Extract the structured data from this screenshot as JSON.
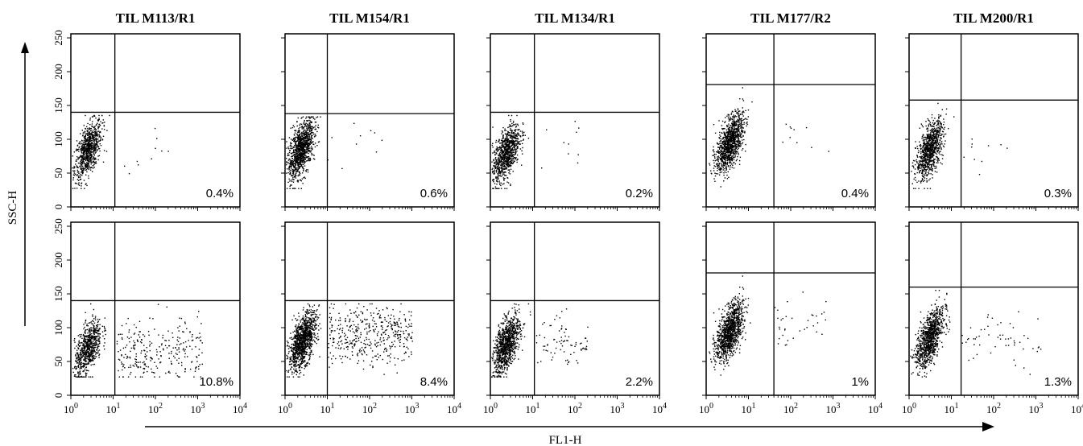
{
  "figure": {
    "y_axis_label": "SSC-H",
    "x_axis_label": "FL1-H"
  },
  "chart_data": [
    {
      "type": "scatter",
      "title": "TIL M113/R1",
      "row": "top",
      "percentage": "0.4%",
      "xscale": "log",
      "xlim": [
        1,
        10000
      ],
      "ylim": [
        0,
        256
      ],
      "xticks": [
        "10^0",
        "10^1",
        "10^2",
        "10^3",
        "10^4"
      ],
      "yticks": [
        "0",
        "50",
        "100",
        "150",
        "200",
        "250"
      ],
      "gate": {
        "x": 11,
        "y": 140
      },
      "cluster": {
        "x": 2.5,
        "y": 85,
        "n": 800
      }
    },
    {
      "type": "scatter",
      "title": "TIL M154/R1",
      "row": "top",
      "percentage": "0.6%",
      "xscale": "log",
      "xlim": [
        1,
        10000
      ],
      "ylim": [
        0,
        256
      ],
      "xticks": [
        "10^0",
        "10^1",
        "10^2",
        "10^3",
        "10^4"
      ],
      "gate": {
        "x": 10,
        "y": 138
      },
      "cluster": {
        "x": 2.3,
        "y": 85,
        "n": 1100
      }
    },
    {
      "type": "scatter",
      "title": "TIL M134/R1",
      "row": "top",
      "percentage": "0.2%",
      "xscale": "log",
      "xlim": [
        1,
        10000
      ],
      "ylim": [
        0,
        256
      ],
      "xticks": [
        "10^0",
        "10^1",
        "10^2",
        "10^3",
        "10^4"
      ],
      "gate": {
        "x": 11,
        "y": 140
      },
      "cluster": {
        "x": 2.3,
        "y": 80,
        "n": 900
      }
    },
    {
      "type": "scatter",
      "title": "TIL M177/R2",
      "row": "top",
      "percentage": "0.4%",
      "xscale": "log",
      "xlim": [
        1,
        10000
      ],
      "ylim": [
        0,
        256
      ],
      "xticks": [
        "10^0",
        "10^1",
        "10^2",
        "10^3",
        "10^4"
      ],
      "gate": {
        "x": 40,
        "y": 181
      },
      "cluster": {
        "x": 3.5,
        "y": 95,
        "n": 1100
      }
    },
    {
      "type": "scatter",
      "title": "TIL M200/R1",
      "row": "top",
      "percentage": "0.3%",
      "xscale": "log",
      "xlim": [
        1,
        10000
      ],
      "ylim": [
        0,
        256
      ],
      "xticks": [
        "10^0",
        "10^1",
        "10^2",
        "10^3",
        "10^4"
      ],
      "gate": {
        "x": 17,
        "y": 158
      },
      "cluster": {
        "x": 3.0,
        "y": 85,
        "n": 900
      }
    },
    {
      "type": "scatter",
      "title": "",
      "row": "bottom",
      "percentage": "10.8%",
      "xscale": "log",
      "xlim": [
        1,
        10000
      ],
      "ylim": [
        0,
        256
      ],
      "xticks": [
        "10^0",
        "10^1",
        "10^2",
        "10^3",
        "10^4"
      ],
      "yticks": [
        "0",
        "50",
        "100",
        "150",
        "200",
        "250"
      ],
      "gate": {
        "x": 11,
        "y": 140
      },
      "cluster": {
        "x": 2.5,
        "y": 70,
        "n": 700
      },
      "tail": {
        "x_range": [
          12,
          1300
        ],
        "y_center": 65,
        "n": 280
      }
    },
    {
      "type": "scatter",
      "title": "",
      "row": "bottom",
      "percentage": "8.4%",
      "xscale": "log",
      "xlim": [
        1,
        10000
      ],
      "ylim": [
        0,
        256
      ],
      "xticks": [
        "10^0",
        "10^1",
        "10^2",
        "10^3",
        "10^4"
      ],
      "gate": {
        "x": 10,
        "y": 140
      },
      "cluster": {
        "x": 2.5,
        "y": 80,
        "n": 1100
      },
      "tail": {
        "x_range": [
          10,
          1000
        ],
        "y_center": 90,
        "n": 420
      }
    },
    {
      "type": "scatter",
      "title": "",
      "row": "bottom",
      "percentage": "2.2%",
      "xscale": "log",
      "xlim": [
        1,
        10000
      ],
      "ylim": [
        0,
        256
      ],
      "xticks": [
        "10^0",
        "10^1",
        "10^2",
        "10^3",
        "10^4"
      ],
      "gate": {
        "x": 11,
        "y": 140
      },
      "cluster": {
        "x": 2.3,
        "y": 75,
        "n": 1000
      },
      "tail": {
        "x_range": [
          12,
          200
        ],
        "y_center": 75,
        "n": 80
      }
    },
    {
      "type": "scatter",
      "title": "",
      "row": "bottom",
      "percentage": "1%",
      "xscale": "log",
      "xlim": [
        1,
        10000
      ],
      "ylim": [
        0,
        256
      ],
      "xticks": [
        "10^0",
        "10^1",
        "10^2",
        "10^3",
        "10^4"
      ],
      "gate": {
        "x": 40,
        "y": 181
      },
      "cluster": {
        "x": 3.5,
        "y": 95,
        "n": 1100
      },
      "tail": {
        "x_range": [
          40,
          700
        ],
        "y_center": 100,
        "n": 35
      }
    },
    {
      "type": "scatter",
      "title": "",
      "row": "bottom",
      "percentage": "1.3%",
      "xscale": "log",
      "xlim": [
        1,
        10000
      ],
      "ylim": [
        0,
        256
      ],
      "xticks": [
        "10^0",
        "10^1",
        "10^2",
        "10^3",
        "10^4"
      ],
      "gate": {
        "x": 17,
        "y": 160
      },
      "cluster": {
        "x": 3.0,
        "y": 85,
        "n": 1000
      },
      "tail": {
        "x_range": [
          17,
          1300
        ],
        "y_center": 85,
        "n": 55
      }
    }
  ]
}
